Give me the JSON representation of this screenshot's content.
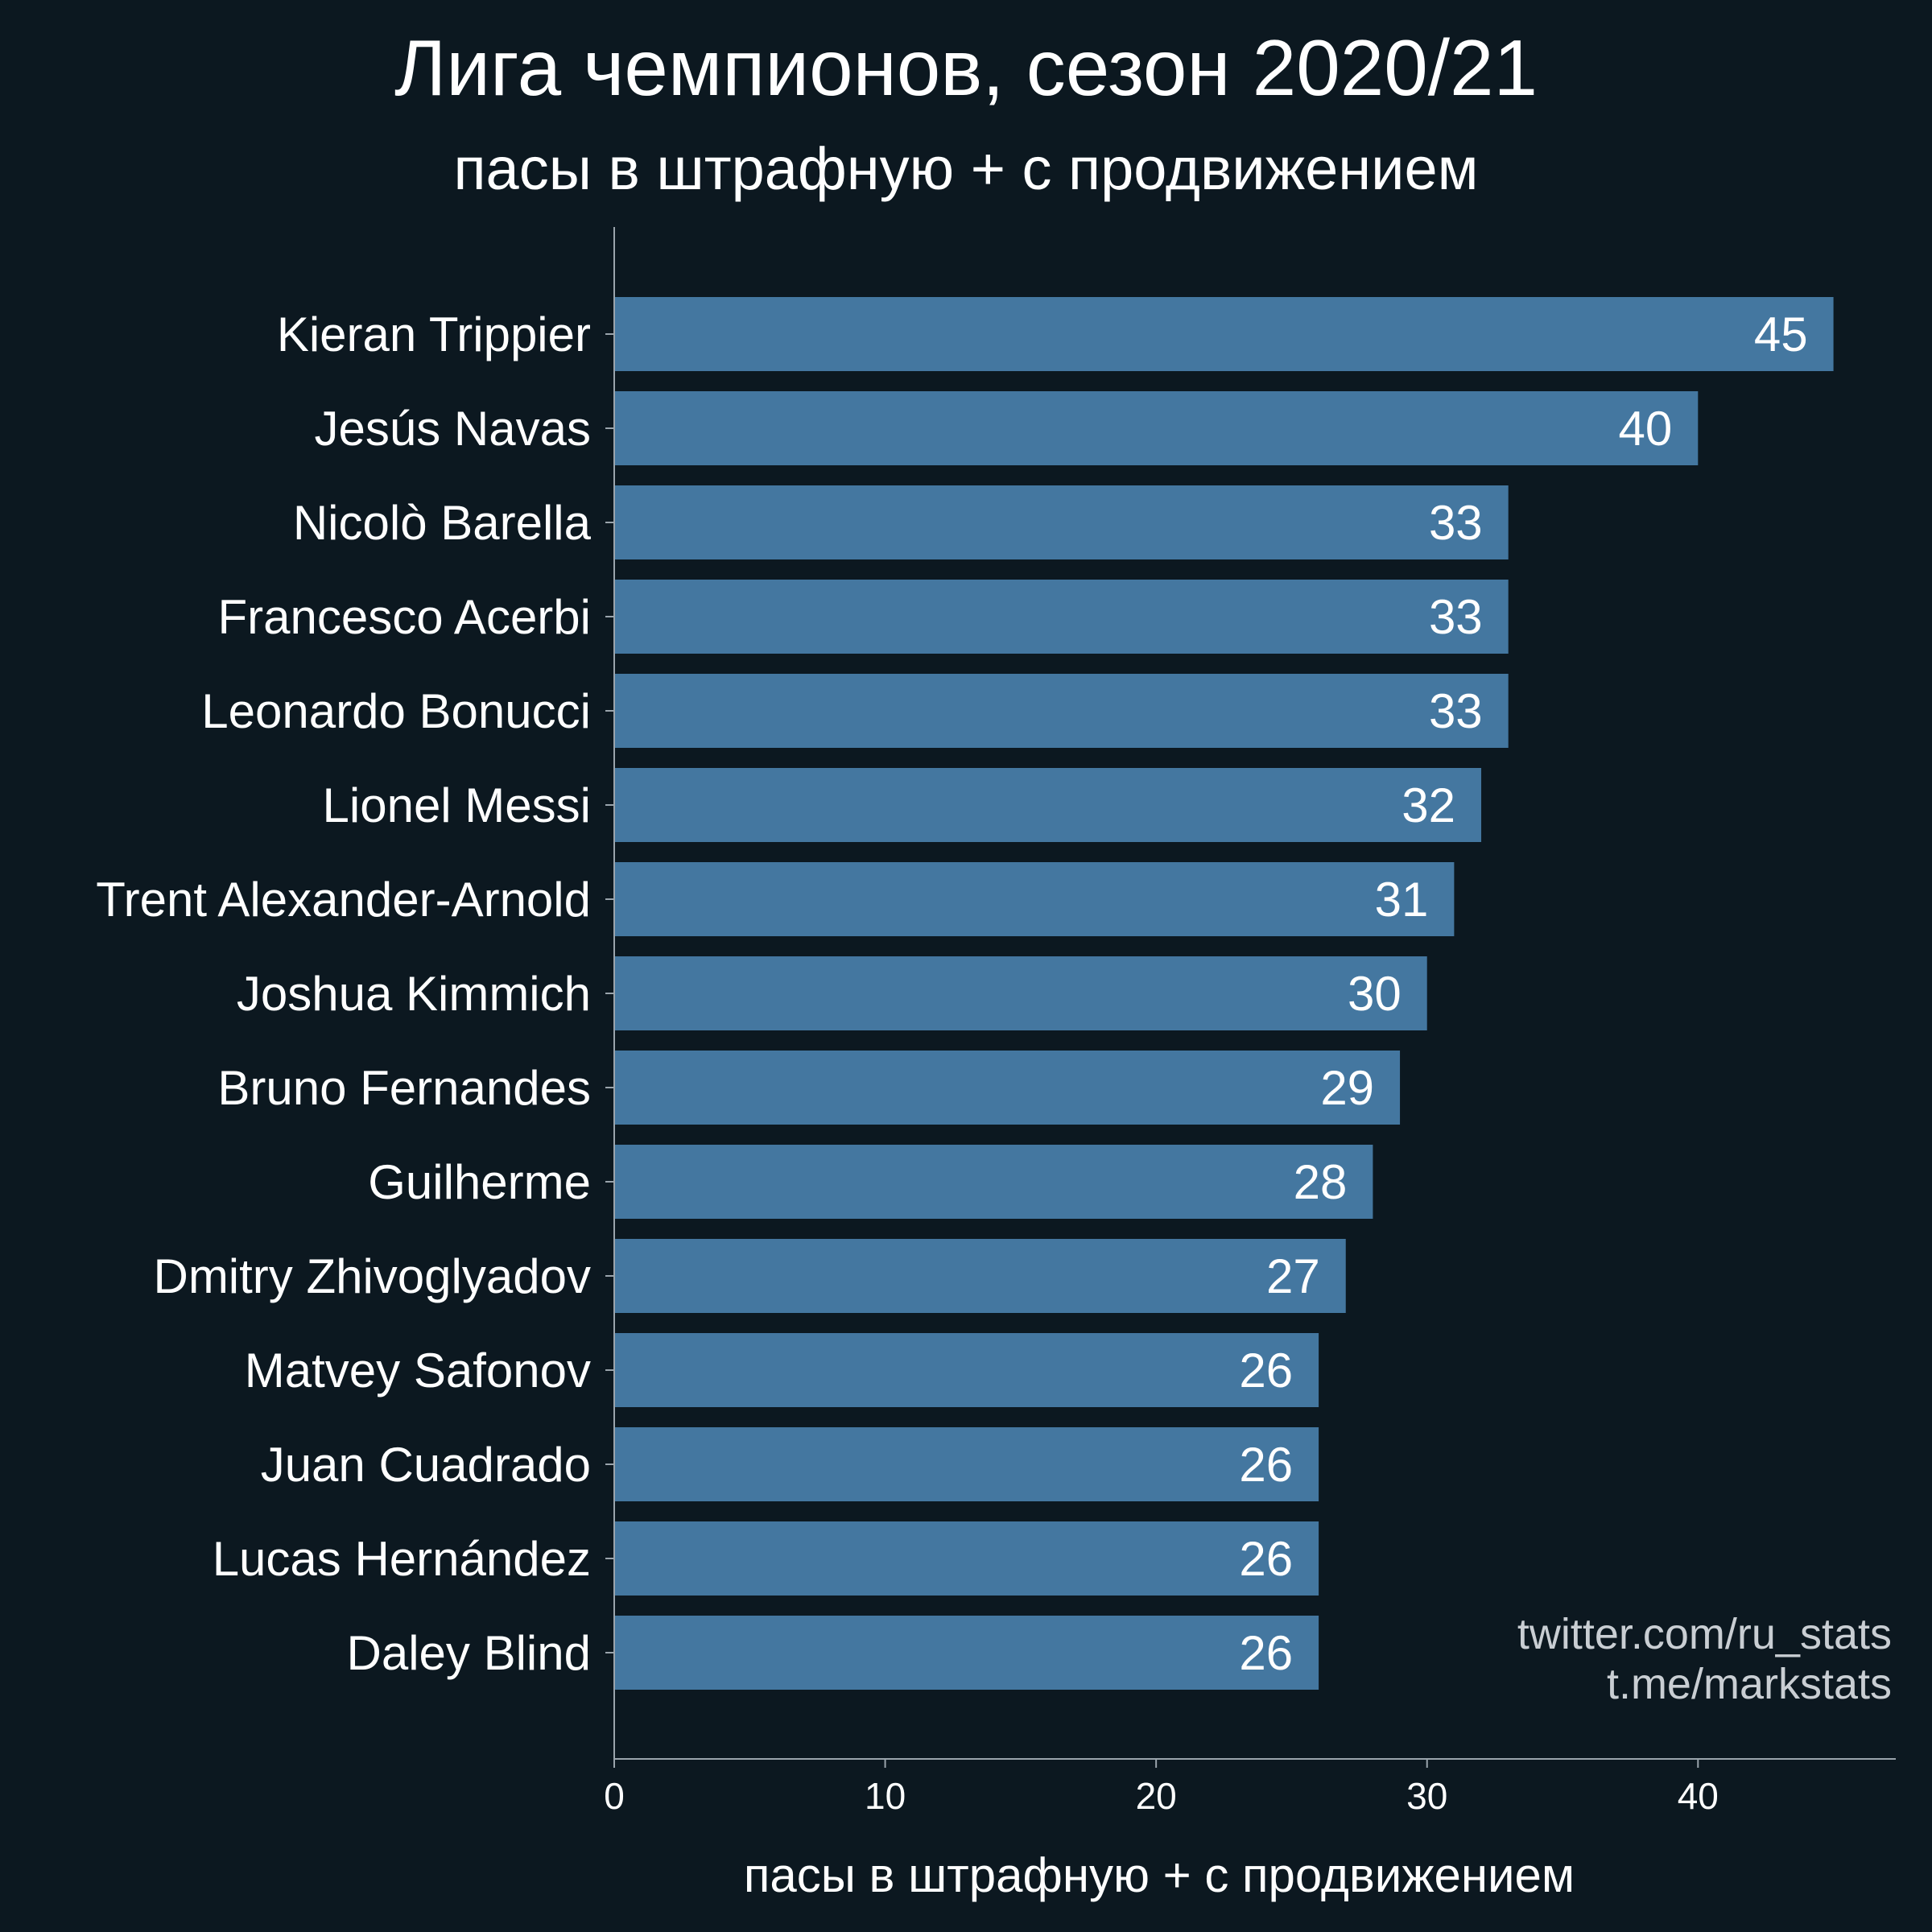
{
  "chart_data": {
    "type": "bar",
    "orientation": "horizontal",
    "title": "Лига чемпионов, сезон 2020/21",
    "subtitle": "пасы в штрафную + с продвижением",
    "xlabel": "пасы в штрафную + с продвижением",
    "ylabel": "",
    "categories": [
      "Kieran Trippier",
      "Jesús Navas",
      "Nicolò Barella",
      "Francesco Acerbi",
      "Leonardo Bonucci",
      "Lionel Messi",
      "Trent Alexander-Arnold",
      "Joshua Kimmich",
      "Bruno Fernandes",
      "Guilherme",
      "Dmitry Zhivoglyadov",
      "Matvey Safonov",
      "Juan Cuadrado",
      "Lucas Hernández",
      "Daley Blind"
    ],
    "values": [
      45,
      40,
      33,
      33,
      33,
      32,
      31,
      30,
      29,
      28,
      27,
      26,
      26,
      26,
      26
    ],
    "xlim": [
      0,
      47.3
    ],
    "xticks": [
      0,
      10,
      20,
      30,
      40
    ],
    "grid": false,
    "bar_color": "#4477a0",
    "background_color": "#0c1820",
    "axis_color": "#9aa4ac"
  },
  "credits": [
    "twitter.com/ru_stats",
    "t.me/markstats"
  ]
}
